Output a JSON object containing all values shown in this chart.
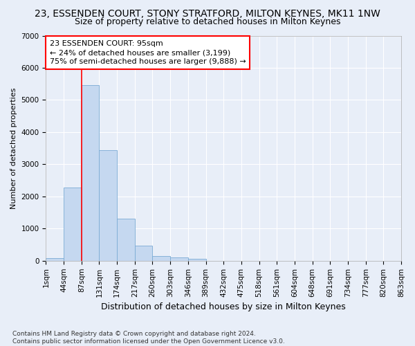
{
  "title": "23, ESSENDEN COURT, STONY STRATFORD, MILTON KEYNES, MK11 1NW",
  "subtitle": "Size of property relative to detached houses in Milton Keynes",
  "xlabel": "Distribution of detached houses by size in Milton Keynes",
  "ylabel": "Number of detached properties",
  "bar_values": [
    75,
    2270,
    5460,
    3440,
    1310,
    460,
    155,
    95,
    60,
    0,
    0,
    0,
    0,
    0,
    0,
    0,
    0,
    0,
    0,
    0
  ],
  "bar_labels": [
    "1sqm",
    "44sqm",
    "87sqm",
    "131sqm",
    "174sqm",
    "217sqm",
    "260sqm",
    "303sqm",
    "346sqm",
    "389sqm",
    "432sqm",
    "475sqm",
    "518sqm",
    "561sqm",
    "604sqm",
    "648sqm",
    "691sqm",
    "734sqm",
    "777sqm",
    "820sqm",
    "863sqm"
  ],
  "bar_color": "#c5d8f0",
  "bar_edge_color": "#7aabd4",
  "ylim": [
    0,
    7000
  ],
  "yticks": [
    0,
    1000,
    2000,
    3000,
    4000,
    5000,
    6000,
    7000
  ],
  "red_line_x": 2.0,
  "annotation_text": "23 ESSENDEN COURT: 95sqm\n← 24% of detached houses are smaller (3,199)\n75% of semi-detached houses are larger (9,888) →",
  "footer_line1": "Contains HM Land Registry data © Crown copyright and database right 2024.",
  "footer_line2": "Contains public sector information licensed under the Open Government Licence v3.0.",
  "background_color": "#e8eef8",
  "grid_color": "#ffffff",
  "title_fontsize": 10,
  "subtitle_fontsize": 9,
  "ylabel_fontsize": 8,
  "xlabel_fontsize": 9,
  "annotation_fontsize": 8,
  "tick_fontsize": 7.5,
  "footer_fontsize": 6.5
}
